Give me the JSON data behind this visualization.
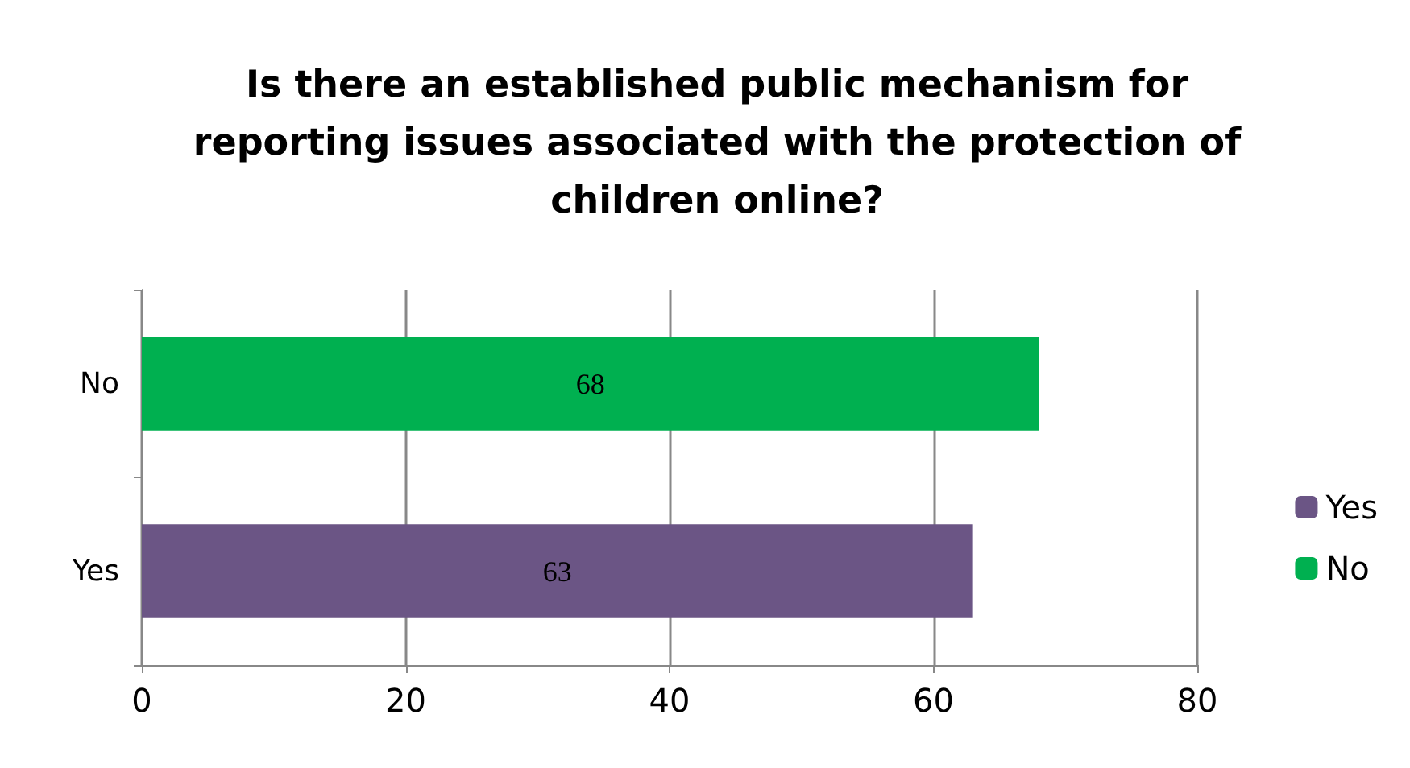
{
  "chart_data": {
    "type": "bar",
    "orientation": "horizontal",
    "stacked": true,
    "title": "Is there an established public mechanism for\nreporting issues associated with the protection of\nchildren online?",
    "categories": [
      "No",
      "Yes"
    ],
    "series": [
      {
        "name": "Yes",
        "color": "#6b5585",
        "values": [
          null,
          63
        ]
      },
      {
        "name": "No",
        "color": "#00b050",
        "values": [
          68,
          null
        ]
      }
    ],
    "xlim": [
      0,
      80
    ],
    "xticks": [
      0,
      20,
      40,
      60,
      80
    ],
    "grid": "x",
    "legend": "right",
    "data_labels": true
  }
}
